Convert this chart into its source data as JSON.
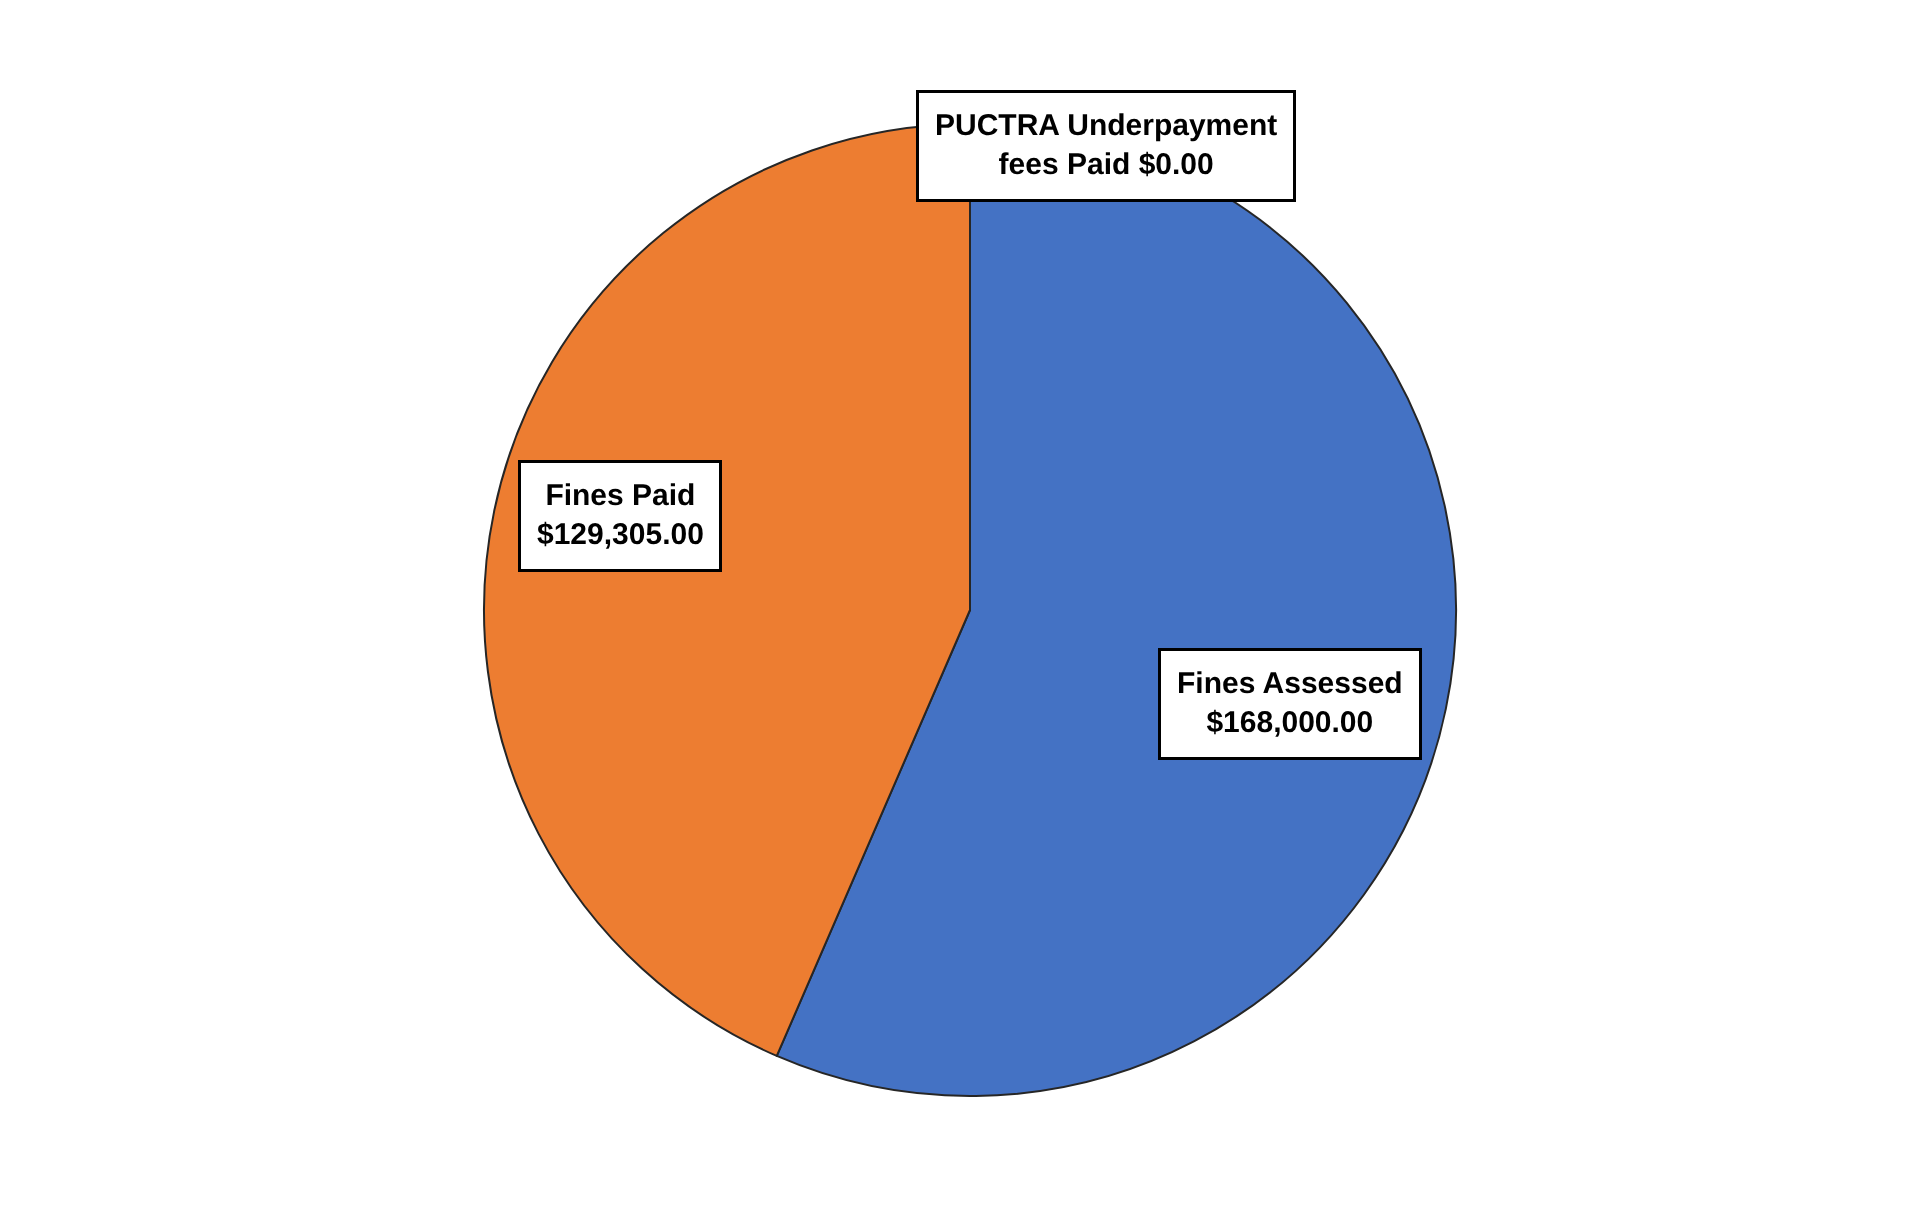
{
  "chart_data": {
    "type": "pie",
    "categories": [
      "Fines Assessed",
      "Fines Paid",
      "PUCTRA Underpayment fees Paid"
    ],
    "values": [
      168000,
      129305,
      0
    ],
    "value_labels": [
      "$168,000.00",
      "$129,305.00",
      "$0.00"
    ],
    "colors": [
      "#4472c4",
      "#ed7d31",
      "#a5a5a5"
    ],
    "legend": false
  }
}
